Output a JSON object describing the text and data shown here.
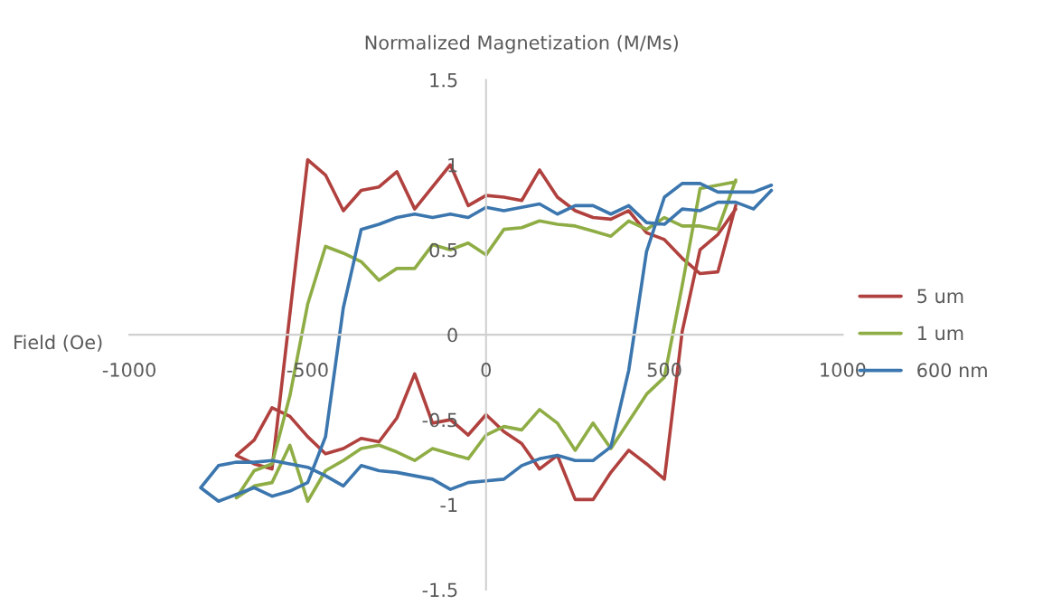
{
  "chart_data": {
    "type": "line",
    "xlabel": "Field (Oe)",
    "ylabel": "Normalized Magnetization (M/Ms)",
    "xlim": [
      -1000,
      1000
    ],
    "ylim": [
      -1.5,
      1.5
    ],
    "xticks": [
      -1000,
      -500,
      0,
      500,
      1000
    ],
    "yticks": [
      -1.5,
      -1,
      -0.5,
      0,
      0.5,
      1,
      1.5
    ],
    "legend": "right",
    "series": [
      {
        "name": "5 um",
        "color": "#b0413e",
        "x": [
          700,
          650,
          600,
          550,
          500,
          450,
          400,
          350,
          300,
          250,
          200,
          150,
          100,
          50,
          0,
          -50,
          -100,
          -150,
          -200,
          -250,
          -300,
          -350,
          -400,
          -450,
          -500,
          -600,
          -650,
          -700,
          -650,
          -600,
          -550,
          -500,
          -450,
          -400,
          -350,
          -300,
          -250,
          -200,
          -150,
          -100,
          -50,
          0,
          50,
          100,
          150,
          200,
          250,
          300,
          350,
          400,
          450,
          500,
          550,
          600,
          650,
          700
        ],
        "values": [
          0.76,
          0.37,
          0.36,
          0.45,
          0.56,
          0.6,
          0.73,
          0.68,
          0.69,
          0.73,
          0.81,
          0.97,
          0.79,
          0.81,
          0.82,
          0.76,
          1.0,
          0.87,
          0.74,
          0.96,
          0.87,
          0.85,
          0.73,
          0.94,
          1.03,
          -0.79,
          -0.76,
          -0.71,
          -0.62,
          -0.43,
          -0.48,
          -0.6,
          -0.7,
          -0.67,
          -0.61,
          -0.63,
          -0.49,
          -0.23,
          -0.52,
          -0.5,
          -0.59,
          -0.47,
          -0.57,
          -0.64,
          -0.79,
          -0.71,
          -0.97,
          -0.97,
          -0.81,
          -0.68,
          -0.76,
          -0.85,
          0.02,
          0.5,
          0.59,
          0.74
        ]
      },
      {
        "name": "1 um",
        "color": "#8fad45",
        "x": [
          700,
          650,
          600,
          550,
          500,
          450,
          400,
          350,
          300,
          250,
          200,
          150,
          100,
          50,
          0,
          -50,
          -100,
          -150,
          -200,
          -250,
          -300,
          -350,
          -400,
          -450,
          -500,
          -550,
          -600,
          -650,
          -700,
          -650,
          -600,
          -550,
          -500,
          -450,
          -400,
          -350,
          -300,
          -250,
          -200,
          -150,
          -100,
          -50,
          0,
          50,
          100,
          150,
          200,
          250,
          300,
          350,
          400,
          450,
          500,
          550,
          600,
          650,
          700
        ],
        "values": [
          0.91,
          0.62,
          0.64,
          0.64,
          0.69,
          0.62,
          0.67,
          0.58,
          0.61,
          0.64,
          0.65,
          0.67,
          0.63,
          0.62,
          0.47,
          0.54,
          0.5,
          0.53,
          0.39,
          0.39,
          0.32,
          0.43,
          0.48,
          0.52,
          0.18,
          -0.36,
          -0.76,
          -0.8,
          -0.96,
          -0.89,
          -0.87,
          -0.65,
          -0.98,
          -0.8,
          -0.74,
          -0.67,
          -0.65,
          -0.69,
          -0.74,
          -0.67,
          -0.7,
          -0.73,
          -0.59,
          -0.54,
          -0.56,
          -0.44,
          -0.52,
          -0.68,
          -0.52,
          -0.67,
          -0.51,
          -0.35,
          -0.25,
          0.29,
          0.86,
          0.88,
          0.9
        ]
      },
      {
        "name": "600 nm",
        "color": "#3b76ae",
        "x": [
          800,
          750,
          700,
          650,
          600,
          550,
          500,
          450,
          400,
          350,
          300,
          250,
          200,
          150,
          100,
          50,
          0,
          -50,
          -100,
          -150,
          -200,
          -250,
          -300,
          -350,
          -400,
          -450,
          -500,
          -550,
          -600,
          -650,
          -700,
          -750,
          -800,
          -750,
          -700,
          -650,
          -600,
          -550,
          -500,
          -450,
          -400,
          -350,
          -300,
          -250,
          -200,
          -150,
          -100,
          -50,
          0,
          50,
          100,
          150,
          200,
          250,
          300,
          350,
          400,
          450,
          500,
          550,
          600,
          650,
          700,
          750,
          800
        ],
        "values": [
          0.85,
          0.74,
          0.78,
          0.78,
          0.73,
          0.74,
          0.65,
          0.66,
          0.76,
          0.71,
          0.76,
          0.76,
          0.71,
          0.77,
          0.75,
          0.73,
          0.75,
          0.69,
          0.71,
          0.69,
          0.71,
          0.69,
          0.65,
          0.62,
          0.16,
          -0.6,
          -0.87,
          -0.92,
          -0.95,
          -0.9,
          -0.94,
          -0.98,
          -0.9,
          -0.77,
          -0.75,
          -0.75,
          -0.74,
          -0.76,
          -0.78,
          -0.83,
          -0.89,
          -0.77,
          -0.8,
          -0.81,
          -0.83,
          -0.85,
          -0.91,
          -0.87,
          -0.86,
          -0.85,
          -0.77,
          -0.73,
          -0.71,
          -0.74,
          -0.74,
          -0.66,
          -0.21,
          0.49,
          0.81,
          0.89,
          0.89,
          0.84,
          0.84,
          0.84,
          0.88
        ]
      }
    ]
  }
}
